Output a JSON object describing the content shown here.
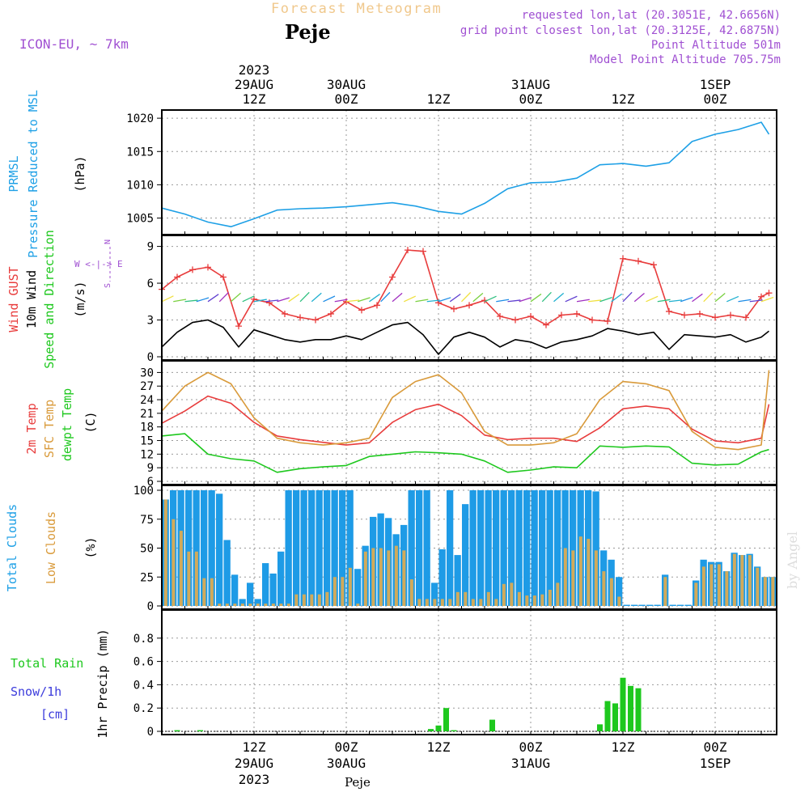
{
  "header": {
    "title": "Forecast Meteogram",
    "location": "Peje",
    "model": "ICON-EU, ~ 7km",
    "requested": "requested lon,lat (20.3051E, 42.6656N)",
    "grid": "grid point closest lon,lat (20.3125E, 42.6875N)",
    "point_alt": "Point Altitude 501m",
    "model_alt": "Model Point Altitude 705.75m",
    "footer": "Peje",
    "credit": "by Angel"
  },
  "colors": {
    "pressure": "#1ea0e6",
    "gust": "#e83c3c",
    "wind": "#000000",
    "temp": "#e83c3c",
    "sfc": "#d99a3a",
    "dew": "#1ec81e",
    "total_cloud": "#1e9be6",
    "low_cloud": "#d2aa5a",
    "rain": "#1ec81e",
    "snow": "#3c3cdc",
    "label_purple": "#a050d2",
    "title_orange": "#f0c88c",
    "grid": "#999999"
  },
  "time_axis": {
    "top_labels": [
      {
        "h": 12,
        "lines": [
          "2023",
          "29AUG",
          "12Z"
        ]
      },
      {
        "h": 24,
        "lines": [
          "30AUG",
          "00Z"
        ]
      },
      {
        "h": 36,
        "lines": [
          "12Z"
        ]
      },
      {
        "h": 48,
        "lines": [
          "31AUG",
          "00Z"
        ]
      },
      {
        "h": 60,
        "lines": [
          "12Z"
        ]
      },
      {
        "h": 72,
        "lines": [
          "1SEP",
          "00Z"
        ]
      }
    ],
    "bottom_labels": [
      {
        "h": 12,
        "lines": [
          "12Z",
          "29AUG",
          "2023"
        ]
      },
      {
        "h": 24,
        "lines": [
          "00Z",
          "30AUG"
        ]
      },
      {
        "h": 36,
        "lines": [
          "12Z"
        ]
      },
      {
        "h": 48,
        "lines": [
          "00Z",
          "31AUG"
        ]
      },
      {
        "h": 60,
        "lines": [
          "12Z"
        ]
      },
      {
        "h": 72,
        "lines": [
          "00Z",
          "1SEP"
        ]
      }
    ]
  },
  "panel_labels": {
    "pressure": {
      "name": "PRMSL",
      "desc": "Pressure Reduced to MSL",
      "unit": "(hPa)"
    },
    "wind": {
      "gust": "Wind GUST",
      "wind": "10m Wind",
      "dir": "Speed and Direction",
      "unit": "(m/s)",
      "compass_n": "N",
      "compass_s": "S",
      "compass_w": "W <-|-> E"
    },
    "temp": {
      "t2m": "2m Temp",
      "sfc": "SFC Temp",
      "dew": "dewpt Temp",
      "unit": "(C)"
    },
    "cloud": {
      "total": "Total Clouds",
      "low": "Low Clouds",
      "unit": "(%)"
    },
    "precip": {
      "rain": "Total  Rain",
      "snow": "Snow/1h",
      "snow_unit": "[cm]",
      "axis": "1hr Precip (mm)"
    }
  },
  "chart_data": [
    {
      "type": "line",
      "name": "pressure",
      "ylabel": "(hPa)",
      "ylim": [
        1003,
        1020.5
      ],
      "yticks": [
        1005,
        1010,
        1015,
        1020
      ],
      "x": [
        0,
        3,
        6,
        9,
        12,
        15,
        18,
        21,
        24,
        27,
        30,
        33,
        36,
        39,
        42,
        45,
        48,
        51,
        54,
        57,
        60,
        63,
        66,
        69,
        72,
        75,
        78,
        79
      ],
      "series": [
        {
          "name": "PRMSL",
          "values": [
            1006.5,
            1005.6,
            1004.4,
            1003.7,
            1004.9,
            1006.2,
            1006.4,
            1006.5,
            1006.7,
            1007.0,
            1007.3,
            1006.8,
            1006.0,
            1005.6,
            1007.2,
            1009.4,
            1010.3,
            1010.4,
            1011.0,
            1013.0,
            1013.2,
            1012.8,
            1013.3,
            1016.5,
            1017.6,
            1018.3,
            1019.4,
            1017.6
          ]
        }
      ]
    },
    {
      "type": "line",
      "name": "wind",
      "ylabel": "(m/s)",
      "ylim": [
        0,
        9.5
      ],
      "yticks": [
        0,
        3,
        6,
        9
      ],
      "x": [
        0,
        2,
        4,
        6,
        8,
        10,
        12,
        14,
        16,
        18,
        20,
        22,
        24,
        26,
        28,
        30,
        32,
        34,
        36,
        38,
        40,
        42,
        44,
        46,
        48,
        50,
        52,
        54,
        56,
        58,
        60,
        62,
        64,
        66,
        68,
        70,
        72,
        74,
        76,
        78,
        79
      ],
      "series": [
        {
          "name": "Wind GUST",
          "values": [
            5.5,
            6.5,
            7.1,
            7.3,
            6.5,
            2.5,
            4.7,
            4.4,
            3.5,
            3.2,
            3.0,
            3.5,
            4.5,
            3.8,
            4.2,
            6.5,
            8.7,
            8.6,
            4.4,
            3.9,
            4.2,
            4.6,
            3.3,
            3.0,
            3.3,
            2.6,
            3.4,
            3.5,
            3.0,
            2.9,
            8.0,
            7.8,
            7.5,
            3.7,
            3.4,
            3.5,
            3.2,
            3.4,
            3.2,
            4.9,
            5.2
          ]
        },
        {
          "name": "10m Wind",
          "values": [
            0.8,
            2.0,
            2.8,
            3.0,
            2.4,
            0.8,
            2.2,
            1.8,
            1.4,
            1.2,
            1.4,
            1.4,
            1.7,
            1.4,
            2.0,
            2.6,
            2.8,
            1.8,
            0.2,
            1.6,
            2.0,
            1.6,
            0.8,
            1.4,
            1.2,
            0.7,
            1.2,
            1.4,
            1.7,
            2.3,
            2.1,
            1.8,
            2.0,
            0.6,
            1.8,
            1.7,
            1.6,
            1.8,
            1.2,
            1.6,
            2.1
          ]
        }
      ]
    },
    {
      "type": "line",
      "name": "temperature",
      "ylabel": "(C)",
      "ylim": [
        6,
        31.5
      ],
      "yticks": [
        6,
        9,
        12,
        15,
        18,
        21,
        24,
        27,
        30
      ],
      "x": [
        0,
        3,
        6,
        9,
        12,
        15,
        18,
        21,
        24,
        27,
        30,
        33,
        36,
        39,
        42,
        45,
        48,
        51,
        54,
        57,
        60,
        63,
        66,
        69,
        72,
        75,
        78,
        79
      ],
      "series": [
        {
          "name": "2m Temp",
          "values": [
            18.8,
            21.5,
            24.8,
            23.2,
            19.0,
            16.0,
            15.2,
            14.6,
            14.0,
            14.5,
            19.0,
            21.8,
            23.0,
            20.5,
            16.2,
            15.2,
            15.5,
            15.5,
            14.8,
            17.8,
            22.0,
            22.6,
            22.0,
            17.5,
            14.9,
            14.5,
            15.5,
            23.0
          ]
        },
        {
          "name": "SFC Temp",
          "values": [
            21.5,
            27.0,
            30.0,
            27.5,
            20.0,
            15.5,
            14.5,
            14.0,
            14.5,
            15.5,
            24.5,
            28.0,
            29.5,
            25.5,
            17.0,
            14.0,
            14.0,
            14.5,
            16.5,
            24.0,
            28.0,
            27.5,
            26.0,
            17.0,
            13.5,
            13.0,
            14.0,
            30.5
          ]
        },
        {
          "name": "dewpt Temp",
          "values": [
            16.0,
            16.5,
            12.0,
            11.0,
            10.5,
            8.0,
            8.8,
            9.2,
            9.5,
            11.5,
            12.0,
            12.5,
            12.3,
            12.0,
            10.5,
            8.0,
            8.5,
            9.2,
            9.0,
            13.8,
            13.5,
            13.8,
            13.6,
            10.0,
            9.6,
            9.8,
            12.5,
            13.0
          ]
        }
      ]
    },
    {
      "type": "bar",
      "name": "clouds",
      "ylabel": "(%)",
      "ylim": [
        0,
        100
      ],
      "yticks": [
        0,
        25,
        50,
        75,
        100
      ],
      "x_start": 0,
      "series": [
        {
          "name": "Total Clouds",
          "values": [
            92,
            100,
            100,
            100,
            100,
            100,
            100,
            97,
            57,
            27,
            6,
            20,
            6,
            37,
            28,
            47,
            100,
            100,
            100,
            100,
            100,
            100,
            100,
            100,
            100,
            32,
            52,
            77,
            80,
            76,
            62,
            70,
            100,
            100,
            100,
            20,
            49,
            100,
            44,
            88,
            100,
            100,
            100,
            100,
            100,
            100,
            100,
            100,
            100,
            100,
            100,
            100,
            100,
            100,
            100,
            100,
            99,
            48,
            40,
            25,
            1,
            1,
            1,
            1,
            1,
            27,
            1,
            1,
            1,
            22,
            40,
            38,
            38,
            30,
            46,
            44,
            45,
            34,
            25,
            25
          ]
        },
        {
          "name": "Low Clouds",
          "values": [
            92,
            75,
            65,
            47,
            47,
            24,
            24,
            2,
            2,
            2,
            2,
            2,
            2,
            2,
            2,
            2,
            2,
            10,
            10,
            10,
            10,
            12,
            25,
            25,
            33,
            2,
            47,
            50,
            50,
            48,
            52,
            48,
            23,
            6,
            6,
            6,
            6,
            6,
            12,
            12,
            6,
            6,
            12,
            6,
            19,
            20,
            12,
            9,
            9,
            10,
            14,
            20,
            50,
            48,
            60,
            58,
            48,
            30,
            24,
            8,
            0,
            0,
            0,
            0,
            0,
            25,
            0,
            0,
            0,
            20,
            34,
            36,
            36,
            30,
            45,
            44,
            44,
            33,
            25,
            25
          ]
        }
      ]
    },
    {
      "type": "bar",
      "name": "precip",
      "ylabel": "1hr Precip (mm)",
      "ylim": [
        0,
        1.0
      ],
      "yticks": [
        0,
        0.2,
        0.4,
        0.6,
        0.8
      ],
      "series": [
        {
          "name": "Total Rain",
          "points": [
            [
              2,
              0.01
            ],
            [
              5,
              0.01
            ],
            [
              35,
              0.02
            ],
            [
              36,
              0.05
            ],
            [
              37,
              0.2
            ],
            [
              38,
              0.01
            ],
            [
              43,
              0.1
            ],
            [
              57,
              0.06
            ],
            [
              58,
              0.26
            ],
            [
              59,
              0.24
            ],
            [
              60,
              0.46
            ],
            [
              61,
              0.39
            ],
            [
              62,
              0.37
            ]
          ]
        }
      ]
    }
  ]
}
